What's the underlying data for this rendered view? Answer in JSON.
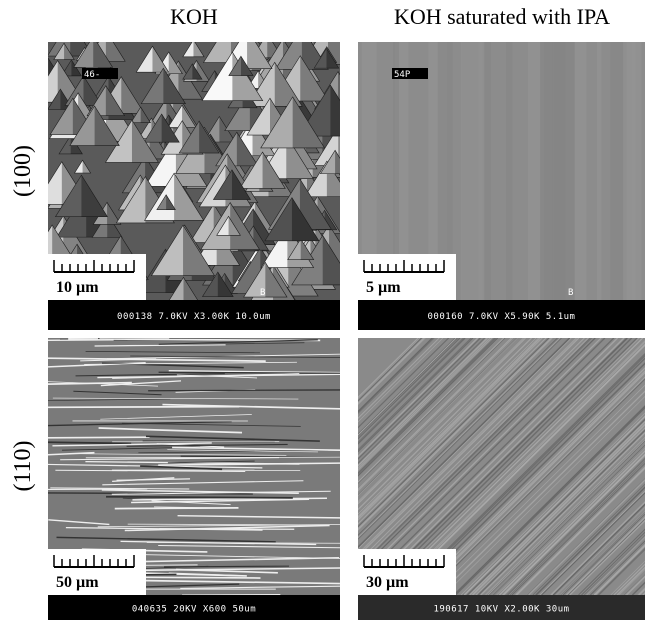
{
  "columns": [
    "KOH",
    "KOH saturated with IPA"
  ],
  "rows": [
    "(100)",
    "(110)"
  ],
  "panels": [
    {
      "scale_bar": "10 µm",
      "info": "000138 7.0KV X3.00K 10.0um",
      "tag": "46-",
      "marker": "B"
    },
    {
      "scale_bar": "5 µm",
      "info": "000160 7.0KV X5.90K 5.1um",
      "tag": "54P",
      "marker": "B"
    },
    {
      "scale_bar": "50 µm",
      "info": "040635 20KV X600 50um"
    },
    {
      "scale_bar": "30 µm",
      "info": "190617 10KV X2.00K 30um"
    }
  ]
}
